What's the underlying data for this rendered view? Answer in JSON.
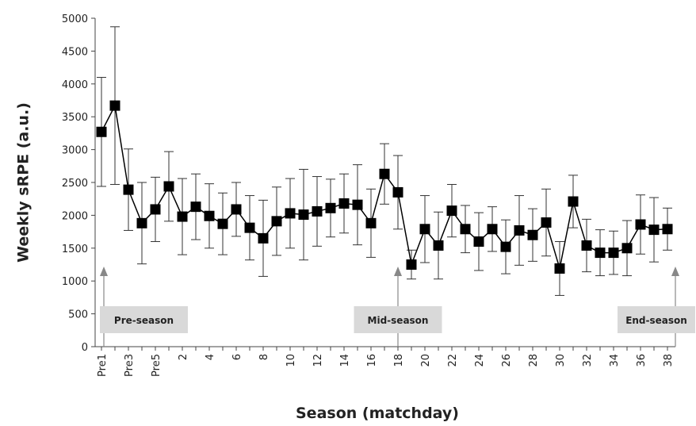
{
  "chart_data": {
    "type": "line",
    "x_label": "Season (matchday)",
    "y_label": "Weekly sRPE (a.u.)",
    "categories": [
      "Pre1",
      null,
      "Pre3",
      null,
      "Pre5",
      null,
      "2",
      null,
      "4",
      null,
      "6",
      null,
      "8",
      null,
      "10",
      null,
      "12",
      null,
      "14",
      null,
      "16",
      null,
      "18",
      null,
      "20",
      null,
      "22",
      null,
      "24",
      null,
      "26",
      null,
      "28",
      null,
      "30",
      null,
      "32",
      null,
      "34",
      null,
      "36",
      null,
      "38"
    ],
    "series": [
      {
        "color": "#000000",
        "values": [
          3270,
          3670,
          2390,
          1880,
          2090,
          2440,
          1980,
          2130,
          1990,
          1870,
          2090,
          1810,
          1650,
          1910,
          2030,
          2010,
          2060,
          2110,
          2180,
          2160,
          1880,
          2630,
          2350,
          1250,
          1790,
          1540,
          2070,
          1790,
          1600,
          1790,
          1520,
          1770,
          1700,
          1890,
          1190,
          2210,
          1540,
          1430,
          1430,
          1500,
          1860,
          1780,
          1790
        ],
        "errors": [
          830,
          1200,
          620,
          620,
          490,
          530,
          580,
          500,
          490,
          470,
          410,
          490,
          580,
          520,
          530,
          690,
          530,
          440,
          450,
          610,
          520,
          460,
          560,
          220,
          510,
          510,
          400,
          360,
          440,
          340,
          410,
          530,
          400,
          510,
          410,
          400,
          400,
          350,
          330,
          420,
          450,
          490,
          320
        ]
      }
    ],
    "ylim": [
      0,
      5000
    ],
    "yticks": [
      0,
      500,
      1000,
      1500,
      2000,
      2500,
      3000,
      3500,
      4000,
      4500,
      5000
    ],
    "annotations": [
      {
        "text": "Pre-season",
        "category": 0
      },
      {
        "text": "Mid-season",
        "category": 22
      },
      {
        "text": "End-season",
        "category": 42
      }
    ]
  }
}
